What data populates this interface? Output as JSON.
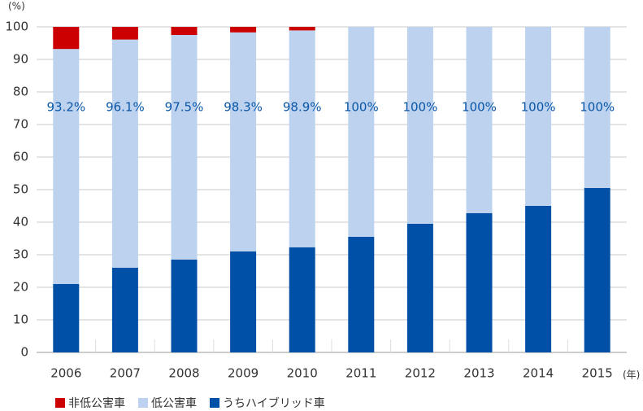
{
  "chart_data": {
    "type": "stacked_bar",
    "y_unit": "(%)",
    "x_unit": "(年)",
    "categories": [
      "2006",
      "2007",
      "2008",
      "2009",
      "2010",
      "2011",
      "2012",
      "2013",
      "2014",
      "2015"
    ],
    "series": [
      {
        "name": "非低公害車",
        "color": "#cc0000",
        "values": [
          6.8,
          3.9,
          2.5,
          1.7,
          1.1,
          0,
          0,
          0,
          0,
          0
        ]
      },
      {
        "name": "低公害車",
        "color": "#bcd2ee",
        "values": [
          72.2,
          70.1,
          69.0,
          67.3,
          66.6,
          64.5,
          60.5,
          57.2,
          55.0,
          49.5
        ]
      },
      {
        "name": "うちハイブリッド車",
        "color": "#0050a8",
        "values": [
          21.0,
          26.0,
          28.5,
          31.0,
          32.3,
          35.5,
          39.5,
          42.8,
          45.0,
          50.5
        ]
      }
    ],
    "low_emission_share": {
      "values": [
        93.2,
        96.1,
        97.5,
        98.3,
        98.9,
        100,
        100,
        100,
        100,
        100
      ],
      "value_labels": [
        "93.2%",
        "96.1%",
        "97.5%",
        "98.3%",
        "98.9%",
        "100%",
        "100%",
        "100%",
        "100%",
        "100%"
      ]
    },
    "ylim": [
      0,
      100
    ],
    "yticks": [
      0,
      10,
      20,
      30,
      40,
      50,
      60,
      70,
      80,
      90,
      100
    ],
    "grid": true
  }
}
